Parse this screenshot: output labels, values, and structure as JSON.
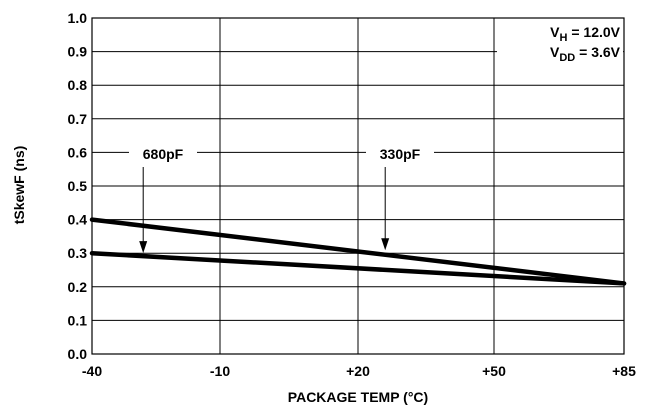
{
  "chart_data": {
    "type": "line",
    "title": "",
    "xlabel": "PACKAGE TEMP (°C)",
    "ylabel": "tSkewF (ns)",
    "xlim": [
      -40,
      85
    ],
    "ylim": [
      0,
      1.0
    ],
    "x_ticks": [
      "-40",
      "-10",
      "+20",
      "+50",
      "+85"
    ],
    "y_ticks": [
      "0.0",
      "0.1",
      "0.2",
      "0.3",
      "0.4",
      "0.5",
      "0.6",
      "0.7",
      "0.8",
      "0.9",
      "1.0"
    ],
    "grid": true,
    "series": [
      {
        "name": "330pF",
        "x": [
          -40,
          85
        ],
        "y": [
          0.4,
          0.21
        ]
      },
      {
        "name": "680pF",
        "x": [
          -40,
          85
        ],
        "y": [
          0.3,
          0.21
        ]
      }
    ],
    "conditions": {
      "vh_main": "V",
      "vh_sub": "H",
      "vh_value": " = 12.0V",
      "vdd_main": "V",
      "vdd_sub": "DD",
      "vdd_value": " = 3.6V"
    }
  }
}
